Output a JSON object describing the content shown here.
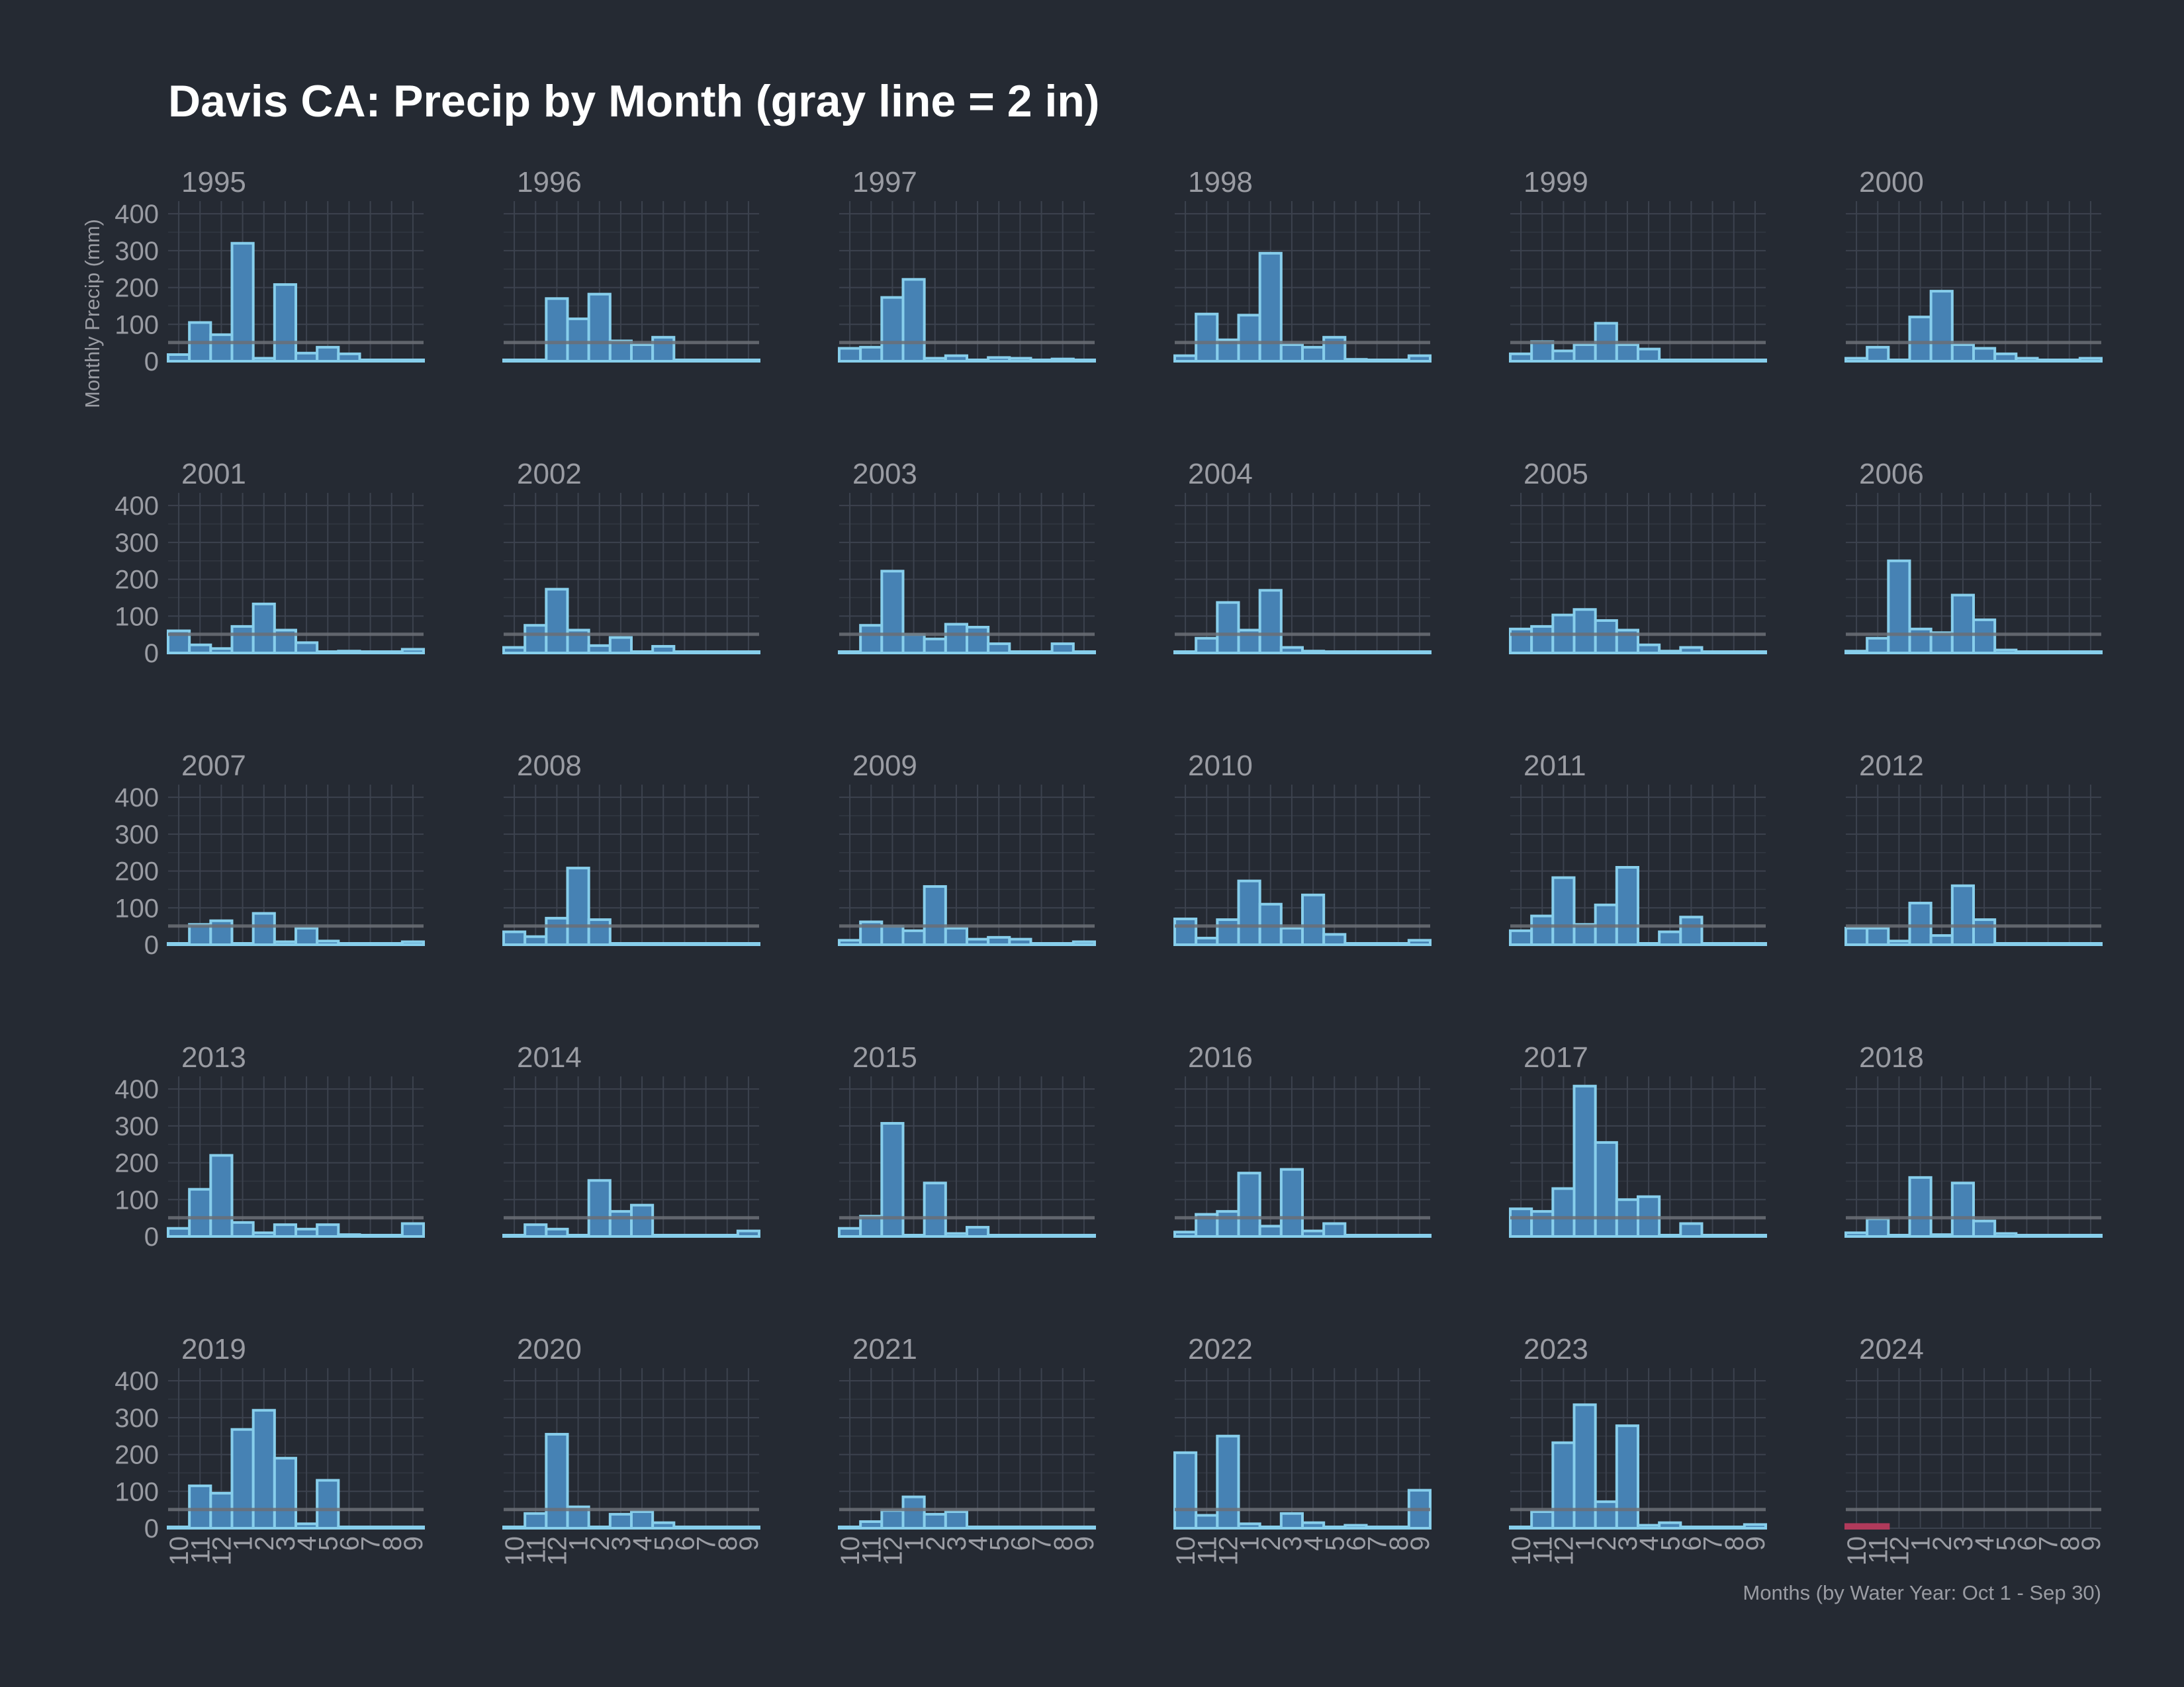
{
  "chart_data": {
    "type": "bar",
    "title": "Davis CA: Precip by Month (gray line = 2 in)",
    "xlabel": "Months (by Water Year: Oct 1 - Sep 30)",
    "ylabel": "Monthly Precip (mm)",
    "ylim": [
      0,
      420
    ],
    "yticks": [
      0,
      100,
      200,
      300,
      400
    ],
    "reference_line": 50.8,
    "months": [
      "10",
      "11",
      "12",
      "1",
      "2",
      "3",
      "4",
      "5",
      "6",
      "7",
      "8",
      "9"
    ],
    "layout": "facet grid, 6 columns x 5 rows, shared axes",
    "bar_color": "#4682b4",
    "bar_outline": "#87ceeb",
    "highlight_color": "#b03a5b",
    "reference_line_color": "#6b6e75",
    "background": "#252a33",
    "panels": [
      {
        "year": "1995",
        "values": [
          18,
          105,
          72,
          320,
          8,
          208,
          22,
          38,
          20,
          2,
          1,
          2
        ]
      },
      {
        "year": "1996",
        "values": [
          1,
          2,
          170,
          115,
          182,
          55,
          45,
          65,
          2,
          2,
          2,
          2
        ]
      },
      {
        "year": "1997",
        "values": [
          35,
          38,
          173,
          222,
          8,
          15,
          3,
          10,
          8,
          2,
          6,
          3
        ]
      },
      {
        "year": "1998",
        "values": [
          15,
          128,
          58,
          125,
          293,
          45,
          38,
          65,
          5,
          2,
          2,
          15
        ]
      },
      {
        "year": "1999",
        "values": [
          20,
          53,
          28,
          45,
          103,
          45,
          33,
          3,
          2,
          2,
          2,
          2
        ]
      },
      {
        "year": "2000",
        "values": [
          8,
          38,
          3,
          120,
          190,
          45,
          35,
          20,
          8,
          2,
          2,
          8
        ]
      },
      {
        "year": "2001",
        "values": [
          60,
          22,
          12,
          72,
          133,
          62,
          28,
          3,
          5,
          2,
          2,
          10
        ]
      },
      {
        "year": "2002",
        "values": [
          15,
          75,
          173,
          62,
          20,
          42,
          3,
          18,
          2,
          2,
          2,
          2
        ]
      },
      {
        "year": "2003",
        "values": [
          3,
          75,
          222,
          50,
          38,
          78,
          70,
          25,
          2,
          2,
          25,
          2
        ]
      },
      {
        "year": "2004",
        "values": [
          2,
          40,
          137,
          62,
          170,
          15,
          5,
          3,
          2,
          2,
          2,
          2
        ]
      },
      {
        "year": "2005",
        "values": [
          65,
          72,
          103,
          118,
          88,
          62,
          22,
          5,
          15,
          2,
          2,
          2
        ]
      },
      {
        "year": "2006",
        "values": [
          5,
          40,
          250,
          65,
          55,
          157,
          90,
          8,
          2,
          2,
          2,
          2
        ]
      },
      {
        "year": "2007",
        "values": [
          3,
          55,
          65,
          3,
          85,
          8,
          45,
          10,
          3,
          3,
          2,
          8
        ]
      },
      {
        "year": "2008",
        "values": [
          35,
          22,
          72,
          208,
          68,
          3,
          3,
          3,
          2,
          2,
          2,
          2
        ]
      },
      {
        "year": "2009",
        "values": [
          12,
          62,
          50,
          38,
          158,
          45,
          15,
          20,
          15,
          2,
          2,
          8
        ]
      },
      {
        "year": "2010",
        "values": [
          70,
          18,
          68,
          173,
          110,
          45,
          135,
          28,
          3,
          3,
          2,
          12
        ]
      },
      {
        "year": "2011",
        "values": [
          38,
          78,
          182,
          55,
          108,
          210,
          3,
          35,
          75,
          3,
          2,
          3
        ]
      },
      {
        "year": "2012",
        "values": [
          45,
          45,
          10,
          113,
          25,
          160,
          68,
          3,
          3,
          2,
          2,
          3
        ]
      },
      {
        "year": "2013",
        "values": [
          22,
          128,
          220,
          38,
          10,
          32,
          20,
          32,
          5,
          2,
          2,
          35
        ]
      },
      {
        "year": "2014",
        "values": [
          2,
          32,
          20,
          3,
          152,
          68,
          85,
          3,
          3,
          2,
          2,
          15
        ]
      },
      {
        "year": "2015",
        "values": [
          22,
          55,
          307,
          3,
          145,
          8,
          25,
          3,
          2,
          2,
          2,
          2
        ]
      },
      {
        "year": "2016",
        "values": [
          12,
          60,
          68,
          172,
          28,
          182,
          15,
          35,
          3,
          2,
          2,
          2
        ]
      },
      {
        "year": "2017",
        "values": [
          75,
          68,
          130,
          408,
          255,
          100,
          108,
          3,
          35,
          2,
          2,
          2
        ]
      },
      {
        "year": "2018",
        "values": [
          10,
          48,
          3,
          160,
          5,
          145,
          42,
          8,
          3,
          2,
          2,
          3
        ]
      },
      {
        "year": "2019",
        "values": [
          3,
          115,
          95,
          268,
          320,
          190,
          12,
          130,
          3,
          2,
          2,
          3
        ]
      },
      {
        "year": "2020",
        "values": [
          2,
          40,
          255,
          58,
          3,
          38,
          45,
          15,
          3,
          2,
          2,
          2
        ]
      },
      {
        "year": "2021",
        "values": [
          3,
          18,
          48,
          85,
          38,
          45,
          3,
          3,
          2,
          2,
          2,
          2
        ]
      },
      {
        "year": "2022",
        "values": [
          205,
          35,
          250,
          12,
          3,
          40,
          15,
          3,
          8,
          2,
          2,
          103
        ]
      },
      {
        "year": "2023",
        "values": [
          2,
          45,
          232,
          335,
          72,
          278,
          8,
          15,
          3,
          2,
          3,
          10
        ]
      },
      {
        "year": "2024",
        "values": [
          10,
          10
        ],
        "highlight": true
      }
    ]
  }
}
